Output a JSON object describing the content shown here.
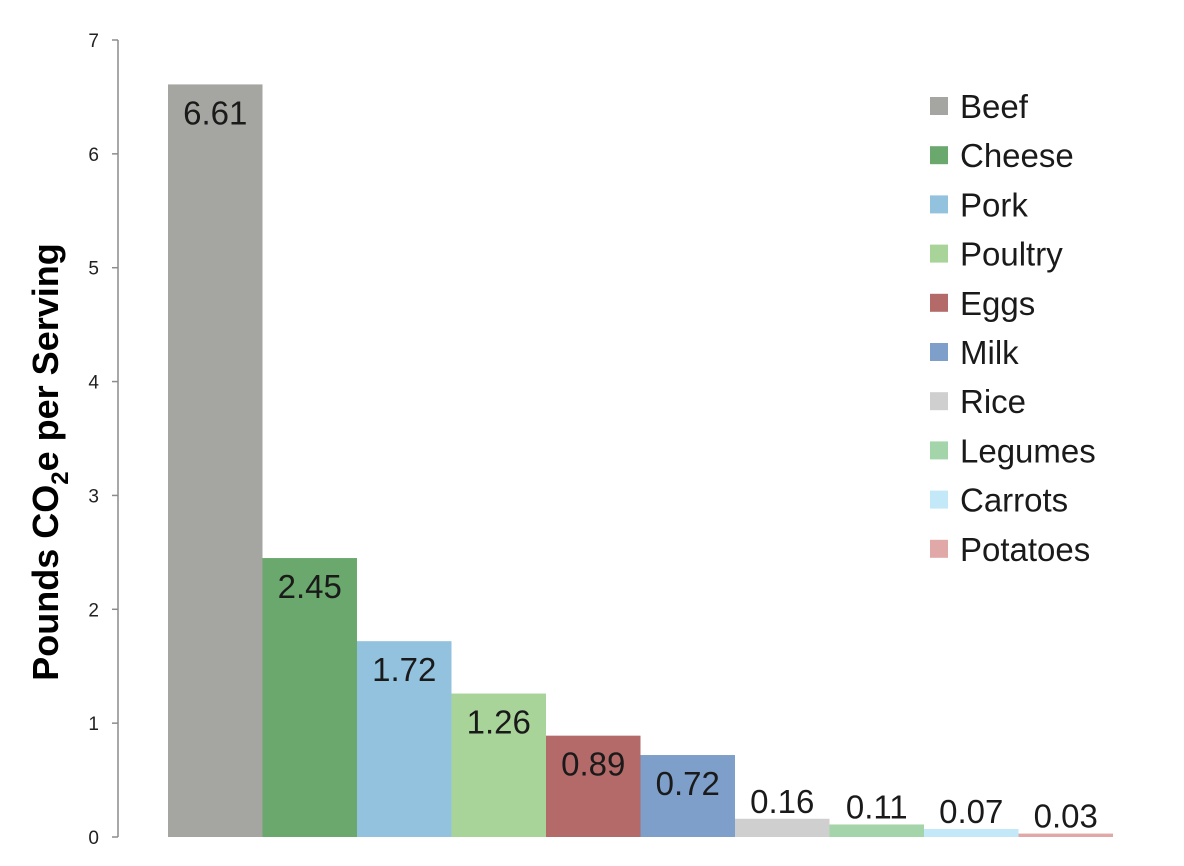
{
  "chart_data": {
    "type": "bar",
    "title": "",
    "xlabel": "",
    "ylabel": {
      "before": "Pounds CO",
      "subscript": "2",
      "after": "e per Serving"
    },
    "ylim": [
      0,
      7
    ],
    "yticks": [
      "0",
      "1",
      "2",
      "3",
      "4",
      "5",
      "6",
      "7"
    ],
    "grid": false,
    "legend_position": "top-right",
    "categories": [
      "Beef",
      "Cheese",
      "Pork",
      "Poultry",
      "Eggs",
      "Milk",
      "Rice",
      "Legumes",
      "Carrots",
      "Potatoes"
    ],
    "values": [
      6.61,
      2.45,
      1.72,
      1.26,
      0.89,
      0.72,
      0.16,
      0.11,
      0.07,
      0.03
    ],
    "data_labels": [
      "6.61",
      "2.45",
      "1.72",
      "1.26",
      "0.89",
      "0.72",
      "0.16",
      "0.11",
      "0.07",
      "0.03"
    ],
    "colors": [
      "#a5a5a1",
      "#6aa86d",
      "#93c2df",
      "#a8d49a",
      "#b36a69",
      "#7d9fca",
      "#cfcfcf",
      "#a4d4a9",
      "#c3e8f7",
      "#e0a8a6"
    ]
  }
}
